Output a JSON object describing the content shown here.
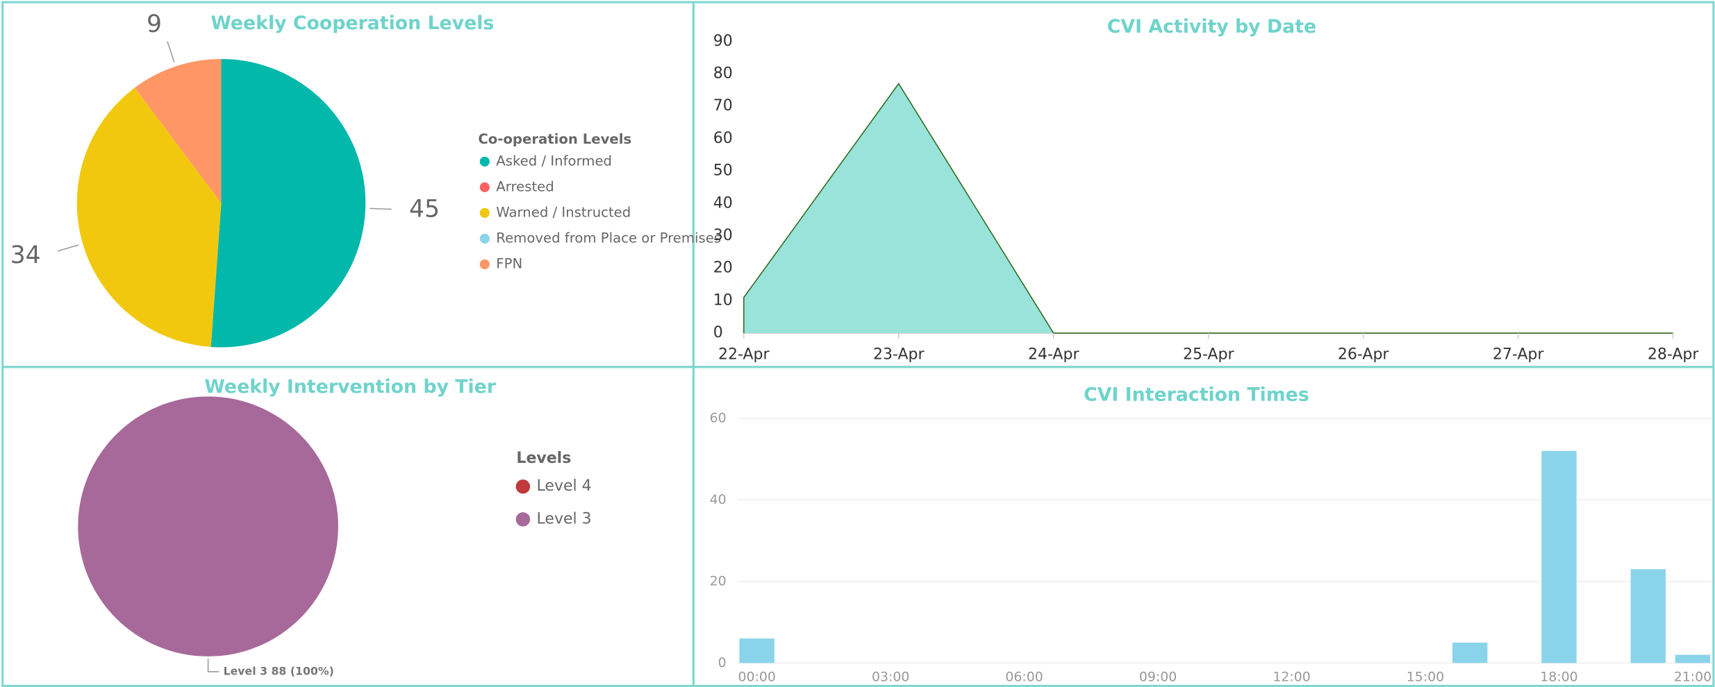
{
  "chart_data": [
    {
      "type": "pie",
      "title": "Weekly Cooperation Levels",
      "legend_title": "Co-operation Levels",
      "categories": [
        "Asked / Informed",
        "Arrested",
        "Warned / Instructed",
        "Removed from Place or Premises",
        "FPN"
      ],
      "values": [
        45,
        0,
        34,
        0,
        9
      ],
      "colors": [
        "#01b8aa",
        "#fd625e",
        "#f2c80f",
        "#8ad4eb",
        "#fe9666"
      ]
    },
    {
      "type": "area",
      "title": "CVI Activity by Date",
      "categories": [
        "22-Apr",
        "23-Apr",
        "24-Apr",
        "25-Apr",
        "26-Apr",
        "27-Apr",
        "28-Apr"
      ],
      "values": [
        11,
        77,
        0,
        0,
        0,
        0,
        0
      ],
      "color": "#99e3da",
      "line_color": "#2e6b1f",
      "ylim": [
        0,
        90
      ],
      "yticks": [
        0,
        10,
        20,
        30,
        40,
        50,
        60,
        70,
        80,
        90
      ],
      "grid": false
    },
    {
      "type": "pie",
      "title": "Weekly Intervention by Tier",
      "legend_title": "Levels",
      "categories": [
        "Level 4",
        "Level 3"
      ],
      "values": [
        0,
        88
      ],
      "value_labels": [
        null,
        "Level 3 88 (100%)"
      ],
      "colors": [
        "#c0393b",
        "#a66999"
      ]
    },
    {
      "type": "bar",
      "title": "CVI Interaction Times",
      "categories": [
        "00:00",
        null,
        null,
        "03:00",
        null,
        null,
        "06:00",
        null,
        null,
        "09:00",
        null,
        null,
        "12:00",
        null,
        null,
        "15:00",
        null,
        null,
        "18:00",
        null,
        null,
        "21:00"
      ],
      "values": [
        6,
        0,
        0,
        0,
        0,
        0,
        0,
        0,
        0,
        0,
        0,
        0,
        0,
        0,
        0,
        0,
        5,
        0,
        52,
        0,
        23,
        2
      ],
      "color": "#8ad4eb",
      "ylim": [
        0,
        60
      ],
      "yticks": [
        0,
        20,
        40,
        60
      ],
      "grid": true
    }
  ]
}
